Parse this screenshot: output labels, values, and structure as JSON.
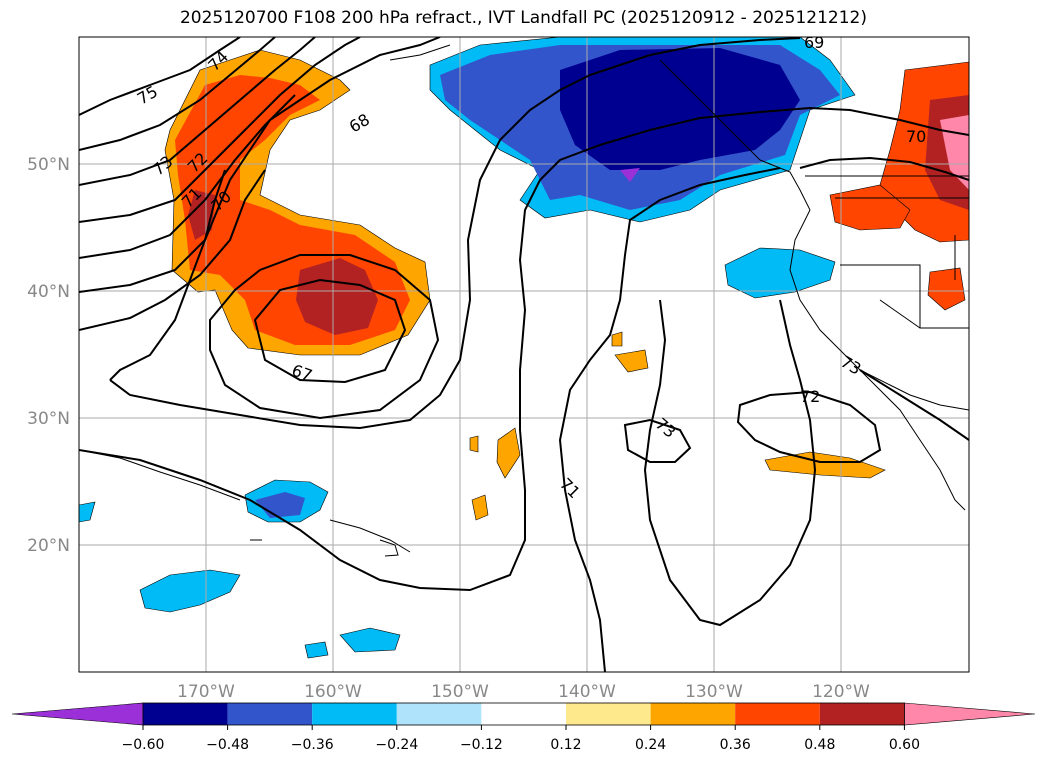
{
  "title": "2025120700 F108 200 hPa refract., IVT Landfall PC (2025120912 - 2025121212)",
  "lat_labels": [
    "50°N",
    "40°N",
    "30°N",
    "20°N"
  ],
  "lon_labels": [
    "170°W",
    "160°W",
    "150°W",
    "140°W",
    "130°W",
    "120°W"
  ],
  "contour_labels": [
    "75",
    "74",
    "73",
    "72",
    "71",
    "70",
    "68",
    "67",
    "69",
    "70",
    "72",
    "73",
    "71",
    "73"
  ],
  "colorbar": {
    "ticks": [
      "−0.60",
      "−0.48",
      "−0.36",
      "−0.24",
      "−0.12",
      "0.12",
      "0.24",
      "0.36",
      "0.48",
      "0.60"
    ],
    "colors": {
      "under": "#9b30d9",
      "c1": "#000090",
      "c2": "#3355cc",
      "c3": "#00bbf5",
      "c4": "#aee3fb",
      "c5": "#ffffff",
      "c6": "#fee98d",
      "c7": "#ffa500",
      "c8": "#ff4500",
      "c9": "#b22222",
      "over": "#ff88aa"
    }
  }
}
